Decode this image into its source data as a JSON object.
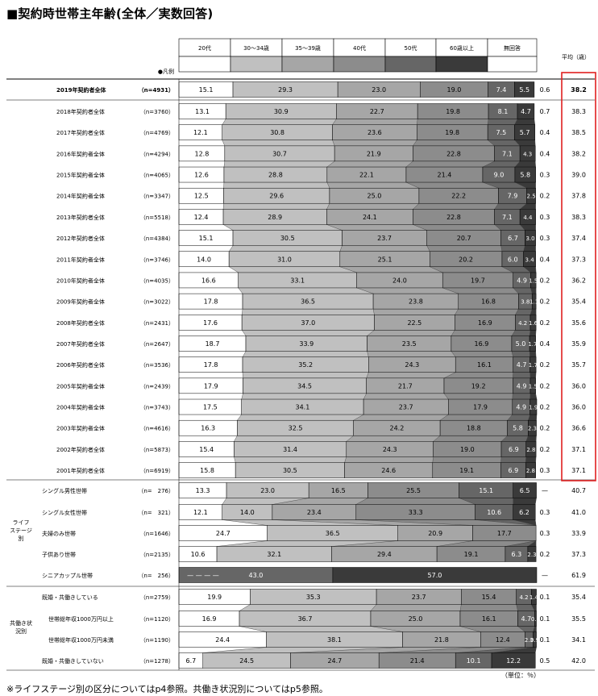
{
  "title": "■契約時世帯主年齢(全体／実数回答)",
  "legend_marker": "●凡例",
  "avg_header": "平均（歳）",
  "unit_label": "（単位：％）",
  "footnote": "※ライフステージ別の区分についてはp4参照。共働き状況別についてはp5参照。",
  "group_labels": [
    "ライフステージ別",
    "共働き状況別"
  ],
  "chart_data": {
    "type": "bar",
    "stacked": "100%",
    "orientation": "horizontal",
    "series": [
      {
        "name": "20代",
        "color": "#ffffff"
      },
      {
        "name": "30～34歳",
        "color": "#c0c0c0"
      },
      {
        "name": "35～39歳",
        "color": "#a6a6a6"
      },
      {
        "name": "40代",
        "color": "#8c8c8c"
      },
      {
        "name": "50代",
        "color": "#666666"
      },
      {
        "name": "60歳以上",
        "color": "#3a3a3a"
      },
      {
        "name": "無回答",
        "color": "#ffffff"
      }
    ],
    "rows": [
      {
        "label": "2019年契約者全体",
        "n": "（n=4931）",
        "values": [
          15.1,
          29.3,
          23.0,
          19.0,
          7.4,
          5.5,
          0.6
        ],
        "avg": "38.2",
        "group": "top"
      },
      {
        "label": "2018年契約者全体",
        "n": "（n=3760）",
        "values": [
          13.1,
          30.9,
          22.7,
          19.8,
          8.1,
          4.7,
          0.7
        ],
        "avg": "38.3",
        "group": "year"
      },
      {
        "label": "2017年契約者全体",
        "n": "（n=4769）",
        "values": [
          12.1,
          30.8,
          23.6,
          19.8,
          7.5,
          5.7,
          0.4
        ],
        "avg": "38.5",
        "group": "year"
      },
      {
        "label": "2016年契約者全体",
        "n": "（n=4294）",
        "values": [
          12.8,
          30.7,
          21.9,
          22.8,
          7.1,
          4.3,
          0.4
        ],
        "avg": "38.2",
        "group": "year"
      },
      {
        "label": "2015年契約者全体",
        "n": "（n=4065）",
        "values": [
          12.6,
          28.8,
          22.1,
          21.4,
          9.0,
          5.8,
          0.3
        ],
        "avg": "39.0",
        "group": "year"
      },
      {
        "label": "2014年契約者全体",
        "n": "（n=3347）",
        "values": [
          12.5,
          29.6,
          25.0,
          22.2,
          7.9,
          2.5,
          0.2
        ],
        "avg": "37.8",
        "group": "year"
      },
      {
        "label": "2013年契約者全体",
        "n": "（n=5518）",
        "values": [
          12.4,
          28.9,
          24.1,
          22.8,
          7.1,
          4.4,
          0.3
        ],
        "avg": "38.3",
        "group": "year"
      },
      {
        "label": "2012年契約者全体",
        "n": "（n=4384）",
        "values": [
          15.1,
          30.5,
          23.7,
          20.7,
          6.7,
          3.0,
          0.3
        ],
        "avg": "37.4",
        "group": "year"
      },
      {
        "label": "2011年契約者全体",
        "n": "（n=3746）",
        "values": [
          14.0,
          31.0,
          25.1,
          20.2,
          6.0,
          3.4,
          0.4
        ],
        "avg": "37.3",
        "group": "year"
      },
      {
        "label": "2010年契約者全体",
        "n": "（n=4035）",
        "values": [
          16.6,
          33.1,
          24.0,
          19.7,
          4.9,
          1.5,
          0.2
        ],
        "avg": "36.2",
        "group": "year"
      },
      {
        "label": "2009年契約者全体",
        "n": "（n=3022）",
        "values": [
          17.8,
          36.5,
          23.8,
          16.8,
          3.8,
          1.1,
          0.2
        ],
        "avg": "35.4",
        "group": "year"
      },
      {
        "label": "2008年契約者全体",
        "n": "（n=2431）",
        "values": [
          17.6,
          37.0,
          22.5,
          16.9,
          4.2,
          1.6,
          0.2
        ],
        "avg": "35.6",
        "group": "year"
      },
      {
        "label": "2007年契約者全体",
        "n": "（n=2647）",
        "values": [
          18.7,
          33.9,
          23.5,
          16.9,
          5.0,
          1.7,
          0.4
        ],
        "avg": "35.9",
        "group": "year"
      },
      {
        "label": "2006年契約者全体",
        "n": "（n=3536）",
        "values": [
          17.8,
          35.2,
          24.3,
          16.1,
          4.7,
          1.7,
          0.2
        ],
        "avg": "35.7",
        "group": "year"
      },
      {
        "label": "2005年契約者全体",
        "n": "（n=2439）",
        "values": [
          17.9,
          34.5,
          21.7,
          19.2,
          4.9,
          1.5,
          0.2
        ],
        "avg": "36.0",
        "group": "year"
      },
      {
        "label": "2004年契約者全体",
        "n": "（n=3743）",
        "values": [
          17.5,
          34.1,
          23.7,
          17.9,
          4.9,
          1.9,
          0.2
        ],
        "avg": "36.0",
        "group": "year"
      },
      {
        "label": "2003年契約者全体",
        "n": "（n=4616）",
        "values": [
          16.3,
          32.5,
          24.2,
          18.8,
          5.8,
          2.3,
          0.2
        ],
        "avg": "36.6",
        "group": "year"
      },
      {
        "label": "2002年契約者全体",
        "n": "（n=5873）",
        "values": [
          15.4,
          31.4,
          24.3,
          19.0,
          6.9,
          2.8,
          0.2
        ],
        "avg": "37.1",
        "group": "year"
      },
      {
        "label": "2001年契約者全体",
        "n": "（n=6919）",
        "values": [
          15.8,
          30.5,
          24.6,
          19.1,
          6.9,
          2.8,
          0.3
        ],
        "avg": "37.1",
        "group": "year"
      },
      {
        "label": "シングル男性世帯",
        "n": "（n=　276）",
        "values": [
          13.3,
          23.0,
          16.5,
          25.5,
          15.1,
          6.5,
          0
        ],
        "avg": "40.7",
        "last": "—",
        "group": "life"
      },
      {
        "label": "シングル女性世帯",
        "n": "（n=　321）",
        "values": [
          12.1,
          14.0,
          23.4,
          33.3,
          10.6,
          6.2,
          0.3
        ],
        "avg": "41.0",
        "group": "life"
      },
      {
        "label": "夫婦のみ世帯",
        "n": "（n=1646）",
        "values": [
          24.7,
          36.5,
          20.9,
          17.7,
          0,
          0,
          0.3
        ],
        "avg": "33.9",
        "dash": [
          4,
          5
        ],
        "group": "life"
      },
      {
        "label": "子供あり世帯",
        "n": "（n=2135）",
        "values": [
          10.6,
          32.1,
          29.4,
          19.1,
          6.3,
          2.3,
          0.2
        ],
        "avg": "37.3",
        "group": "life"
      },
      {
        "label": "シニアカップル世帯",
        "n": "（n=　256）",
        "values": [
          0,
          0,
          0,
          0,
          43.0,
          57.0,
          0
        ],
        "avg": "61.9",
        "last": "—",
        "dash": [
          0,
          1,
          2,
          3
        ],
        "group": "life"
      },
      {
        "label": "既婚・共働きしている",
        "n": "（n=2759）",
        "values": [
          19.9,
          35.3,
          23.7,
          15.4,
          4.2,
          1.4,
          0.1
        ],
        "avg": "35.4",
        "group": "work"
      },
      {
        "label": "世帯総年収1000万円以上",
        "n": "（n=1120）",
        "values": [
          16.9,
          36.7,
          25.0,
          16.1,
          4.7,
          0.5,
          0.1
        ],
        "avg": "35.5",
        "group": "work",
        "indent": true
      },
      {
        "label": "世帯総年収1000万円未満",
        "n": "（n=1190）",
        "values": [
          24.4,
          38.1,
          21.8,
          12.4,
          2.3,
          0.9,
          0.1
        ],
        "avg": "34.1",
        "group": "work",
        "indent": true
      },
      {
        "label": "既婚・共働きしていない",
        "n": "（n=1278）",
        "values": [
          6.7,
          24.5,
          24.7,
          21.4,
          10.1,
          12.2,
          0.5
        ],
        "avg": "42.0",
        "group": "work"
      }
    ]
  }
}
